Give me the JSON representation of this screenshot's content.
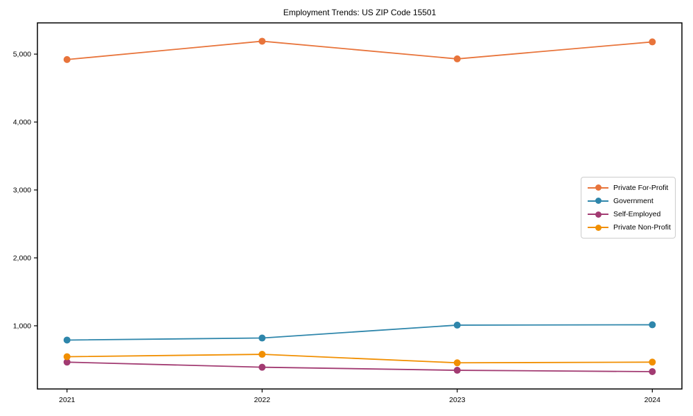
{
  "chart_data": {
    "type": "line",
    "title": "Employment Trends: US ZIP Code 15501",
    "categories": [
      "2021",
      "2022",
      "2023",
      "2024"
    ],
    "series": [
      {
        "name": "Private For-Profit",
        "color": "#E8743B",
        "values": [
          4920,
          5190,
          4930,
          5180
        ]
      },
      {
        "name": "Government",
        "color": "#2E86AB",
        "values": [
          790,
          820,
          1010,
          1015
        ]
      },
      {
        "name": "Self-Employed",
        "color": "#A23B72",
        "values": [
          465,
          390,
          345,
          325
        ]
      },
      {
        "name": "Private Non-Profit",
        "color": "#F18F01",
        "values": [
          545,
          580,
          455,
          465
        ]
      }
    ],
    "xlabel": "",
    "ylabel": "",
    "ylim": [
      70,
      5460
    ],
    "yticks": [
      1000,
      2000,
      3000,
      4000,
      5000
    ],
    "y_tick_labels": [
      "1,000",
      "2,000",
      "3,000",
      "4,000",
      "5,000"
    ],
    "grid": false,
    "legend_position": "center-right",
    "marker": "circle",
    "axis_color": "#000000"
  }
}
